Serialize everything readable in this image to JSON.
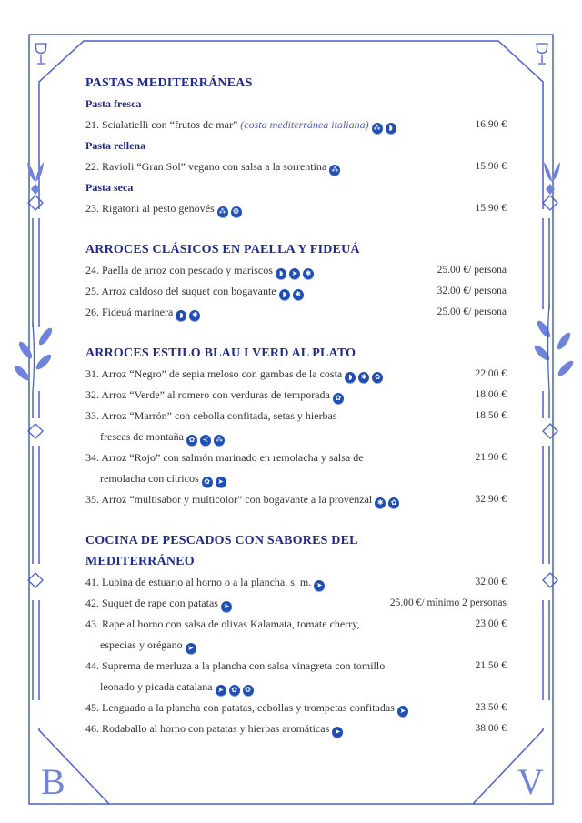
{
  "colors": {
    "heading": "#1f2a8c",
    "border": "#4a5fd0",
    "icon": "#1f4fb5"
  },
  "monogram": {
    "left": "B",
    "right": "V"
  },
  "sections": [
    {
      "title": "PASTAS MEDITERRÁNEAS",
      "groups": [
        {
          "subtitle": "Pasta fresca",
          "items": [
            {
              "text": "21. Scialatielli con “frutos de mar”",
              "note": "(costa mediterránea italiana)",
              "icons": [
                "gluten-icon",
                "mollusc-icon"
              ],
              "price": "16.90 €"
            }
          ]
        },
        {
          "subtitle": "Pasta rellena",
          "items": [
            {
              "text": "22. Ravioli “Gran Sol” vegano con salsa a la sorrentina",
              "icons": [
                "gluten-icon"
              ],
              "price": "15.90 €"
            }
          ]
        },
        {
          "subtitle": "Pasta seca",
          "items": [
            {
              "text": "23. Rigatoni al pesto genovés",
              "icons": [
                "gluten-icon",
                "nuts-icon"
              ],
              "price": "15.90 €"
            }
          ]
        }
      ]
    },
    {
      "title": "ARROCES CLÁSICOS EN PAELLA Y FIDEUÁ",
      "groups": [
        {
          "items": [
            {
              "text": "24. Paella de arroz con pescado y mariscos",
              "icons": [
                "mollusc-icon",
                "fish-icon",
                "crustacean-icon"
              ],
              "price": "25.00 €/ persona"
            },
            {
              "text": "25. Arroz caldoso del suquet con bogavante",
              "icons": [
                "mollusc-icon",
                "crustacean-icon"
              ],
              "price": "32.00 €/ persona"
            },
            {
              "text": "26. Fideuá marinera",
              "icons": [
                "mollusc-icon",
                "crustacean-icon"
              ],
              "price": "25.00 €/ persona"
            }
          ]
        }
      ]
    },
    {
      "title": "ARROCES ESTILO BLAU I VERD AL PLATO",
      "groups": [
        {
          "items": [
            {
              "text": "31. Arroz “Negro” de sepia meloso con gambas de la costa",
              "icons": [
                "mollusc-icon",
                "crustacean-icon",
                "celery-icon"
              ],
              "price": "22.00 €"
            },
            {
              "text": "32. Arroz “Verde” al romero con verduras de temporada",
              "icons": [
                "celery-icon"
              ],
              "price": "18.00 €"
            },
            {
              "text": "33. Arroz “Marrón” con cebolla confitada, setas y hierbas",
              "price": "18.50 €",
              "cont": {
                "text": "frescas de montaña",
                "icons": [
                  "celery-icon",
                  "sulphite-icon",
                  "gluten-icon"
                ]
              }
            },
            {
              "text": "34. Arroz “Rojo” con salmón marinado en remolacha y salsa de",
              "price": "21.90 €",
              "cont": {
                "text": "remolacha con cítricos",
                "icons": [
                  "celery-icon",
                  "fish-icon"
                ]
              }
            },
            {
              "text": "35. Arroz “multisabor y multicolor” con bogavante a la provenzal",
              "icons": [
                "crustacean-icon",
                "celery-icon"
              ],
              "price": "32.90 €"
            }
          ]
        }
      ]
    },
    {
      "title": "COCINA DE PESCADOS CON SABORES DEL",
      "title2": "MEDITERRÁNEO",
      "groups": [
        {
          "items": [
            {
              "text": "41. Lubina de estuario al horno o a la plancha. s. m.",
              "icons": [
                "fish-icon"
              ],
              "price": "32.00 €"
            },
            {
              "text": "42. Suquet de rape con patatas",
              "icons": [
                "fish-icon"
              ],
              "price": "25.00 €/ mínimo 2 personas"
            },
            {
              "text": "43. Rape al horno con salsa de olivas Kalamata, tomate cherry,",
              "price": "23.00 €",
              "cont": {
                "text": "especias y orégano",
                "icons": [
                  "fish-icon"
                ]
              }
            },
            {
              "text": "44. Suprema de merluza a la plancha con salsa vinagreta con tomillo",
              "price": "21.50 €",
              "cont": {
                "text": "leonado y picada catalana",
                "icons": [
                  "fish-icon",
                  "celery-icon",
                  "nuts-icon"
                ]
              }
            },
            {
              "text": "45. Lenguado a la plancha con patatas, cebollas y trompetas confitadas",
              "icons": [
                "fish-icon"
              ],
              "price": "23.50 €"
            },
            {
              "text": "46. Rodaballo al horno con patatas y hierbas aromáticas",
              "icons": [
                "fish-icon"
              ],
              "price": "38.00 €"
            }
          ]
        }
      ]
    }
  ]
}
